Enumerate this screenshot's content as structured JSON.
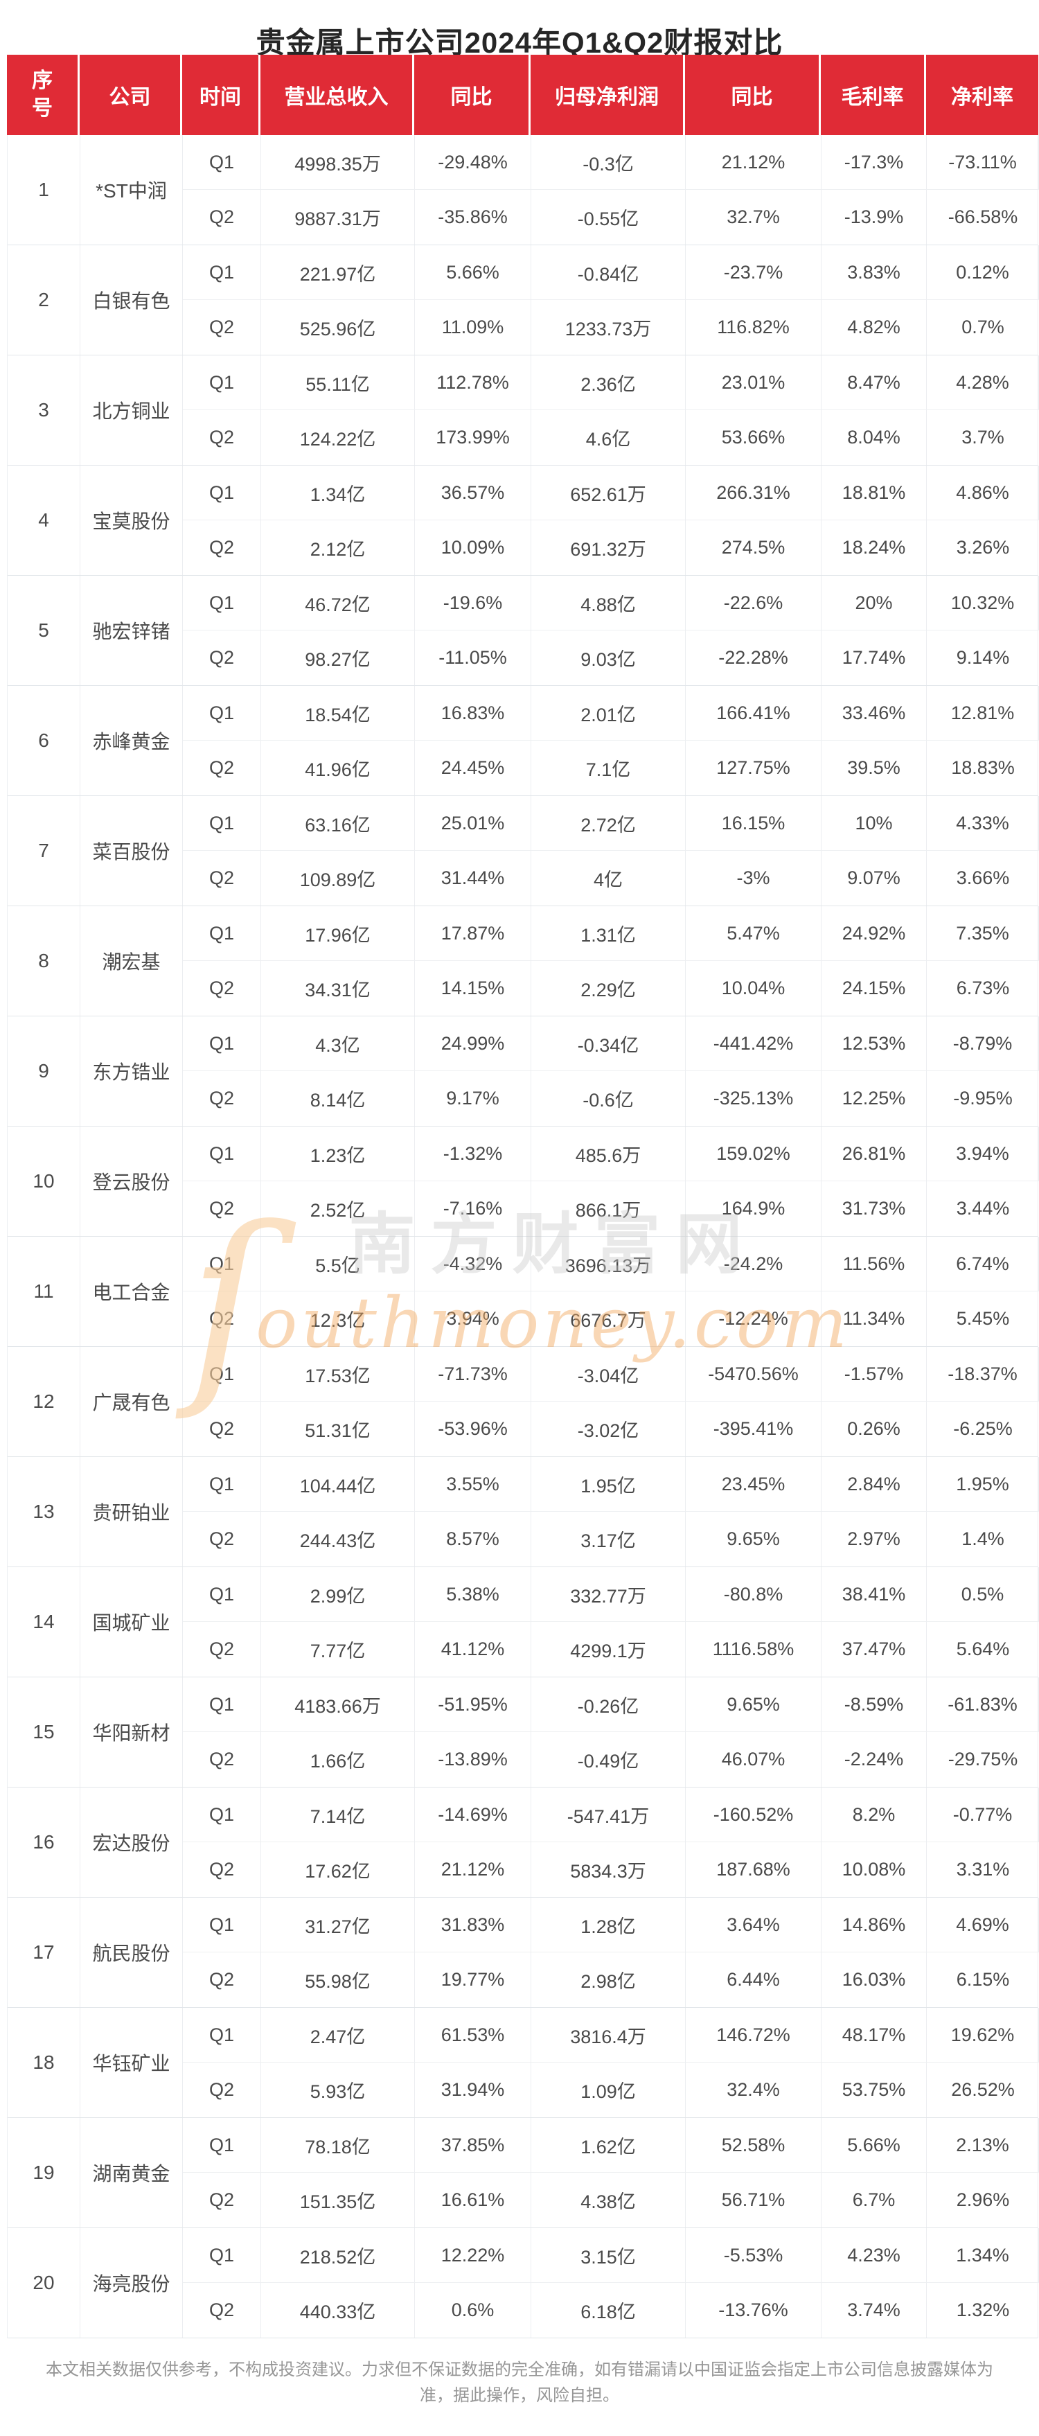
{
  "title": "贵金属上市公司2024年Q1&Q2财报对比",
  "colors": {
    "header_bg": "#e02b36",
    "header_text": "#ffffff",
    "body_text": "#4a4a4a",
    "title_text": "#262626",
    "footer_text": "#969696",
    "grid_line": "#eceef1",
    "watermark_orange": "#f2a65c",
    "watermark_gray": "#c8c8c8"
  },
  "table": {
    "headers": [
      "序号",
      "公司",
      "时间",
      "营业总收入",
      "同比",
      "归母净利润",
      "同比",
      "毛利率",
      "净利率"
    ],
    "rows": [
      {
        "no": "1",
        "company": "*ST中润",
        "q1": [
          "Q1",
          "4998.35万",
          "-29.48%",
          "-0.3亿",
          "21.12%",
          "-17.3%",
          "-73.11%"
        ],
        "q2": [
          "Q2",
          "9887.31万",
          "-35.86%",
          "-0.55亿",
          "32.7%",
          "-13.9%",
          "-66.58%"
        ]
      },
      {
        "no": "2",
        "company": "白银有色",
        "q1": [
          "Q1",
          "221.97亿",
          "5.66%",
          "-0.84亿",
          "-23.7%",
          "3.83%",
          "0.12%"
        ],
        "q2": [
          "Q2",
          "525.96亿",
          "11.09%",
          "1233.73万",
          "116.82%",
          "4.82%",
          "0.7%"
        ]
      },
      {
        "no": "3",
        "company": "北方铜业",
        "q1": [
          "Q1",
          "55.11亿",
          "112.78%",
          "2.36亿",
          "23.01%",
          "8.47%",
          "4.28%"
        ],
        "q2": [
          "Q2",
          "124.22亿",
          "173.99%",
          "4.6亿",
          "53.66%",
          "8.04%",
          "3.7%"
        ]
      },
      {
        "no": "4",
        "company": "宝莫股份",
        "q1": [
          "Q1",
          "1.34亿",
          "36.57%",
          "652.61万",
          "266.31%",
          "18.81%",
          "4.86%"
        ],
        "q2": [
          "Q2",
          "2.12亿",
          "10.09%",
          "691.32万",
          "274.5%",
          "18.24%",
          "3.26%"
        ]
      },
      {
        "no": "5",
        "company": "驰宏锌锗",
        "q1": [
          "Q1",
          "46.72亿",
          "-19.6%",
          "4.88亿",
          "-22.6%",
          "20%",
          "10.32%"
        ],
        "q2": [
          "Q2",
          "98.27亿",
          "-11.05%",
          "9.03亿",
          "-22.28%",
          "17.74%",
          "9.14%"
        ]
      },
      {
        "no": "6",
        "company": "赤峰黄金",
        "q1": [
          "Q1",
          "18.54亿",
          "16.83%",
          "2.01亿",
          "166.41%",
          "33.46%",
          "12.81%"
        ],
        "q2": [
          "Q2",
          "41.96亿",
          "24.45%",
          "7.1亿",
          "127.75%",
          "39.5%",
          "18.83%"
        ]
      },
      {
        "no": "7",
        "company": "菜百股份",
        "q1": [
          "Q1",
          "63.16亿",
          "25.01%",
          "2.72亿",
          "16.15%",
          "10%",
          "4.33%"
        ],
        "q2": [
          "Q2",
          "109.89亿",
          "31.44%",
          "4亿",
          "-3%",
          "9.07%",
          "3.66%"
        ]
      },
      {
        "no": "8",
        "company": "潮宏基",
        "q1": [
          "Q1",
          "17.96亿",
          "17.87%",
          "1.31亿",
          "5.47%",
          "24.92%",
          "7.35%"
        ],
        "q2": [
          "Q2",
          "34.31亿",
          "14.15%",
          "2.29亿",
          "10.04%",
          "24.15%",
          "6.73%"
        ]
      },
      {
        "no": "9",
        "company": "东方锆业",
        "q1": [
          "Q1",
          "4.3亿",
          "24.99%",
          "-0.34亿",
          "-441.42%",
          "12.53%",
          "-8.79%"
        ],
        "q2": [
          "Q2",
          "8.14亿",
          "9.17%",
          "-0.6亿",
          "-325.13%",
          "12.25%",
          "-9.95%"
        ]
      },
      {
        "no": "10",
        "company": "登云股份",
        "q1": [
          "Q1",
          "1.23亿",
          "-1.32%",
          "485.6万",
          "159.02%",
          "26.81%",
          "3.94%"
        ],
        "q2": [
          "Q2",
          "2.52亿",
          "-7.16%",
          "866.1万",
          "164.9%",
          "31.73%",
          "3.44%"
        ]
      },
      {
        "no": "11",
        "company": "电工合金",
        "q1": [
          "Q1",
          "5.5亿",
          "-4.32%",
          "3696.13万",
          "-24.2%",
          "11.56%",
          "6.74%"
        ],
        "q2": [
          "Q2",
          "12.3亿",
          "3.94%",
          "6676.7万",
          "-12.24%",
          "11.34%",
          "5.45%"
        ]
      },
      {
        "no": "12",
        "company": "广晟有色",
        "q1": [
          "Q1",
          "17.53亿",
          "-71.73%",
          "-3.04亿",
          "-5470.56%",
          "-1.57%",
          "-18.37%"
        ],
        "q2": [
          "Q2",
          "51.31亿",
          "-53.96%",
          "-3.02亿",
          "-395.41%",
          "0.26%",
          "-6.25%"
        ]
      },
      {
        "no": "13",
        "company": "贵研铂业",
        "q1": [
          "Q1",
          "104.44亿",
          "3.55%",
          "1.95亿",
          "23.45%",
          "2.84%",
          "1.95%"
        ],
        "q2": [
          "Q2",
          "244.43亿",
          "8.57%",
          "3.17亿",
          "9.65%",
          "2.97%",
          "1.4%"
        ]
      },
      {
        "no": "14",
        "company": "国城矿业",
        "q1": [
          "Q1",
          "2.99亿",
          "5.38%",
          "332.77万",
          "-80.8%",
          "38.41%",
          "0.5%"
        ],
        "q2": [
          "Q2",
          "7.77亿",
          "41.12%",
          "4299.1万",
          "1116.58%",
          "37.47%",
          "5.64%"
        ]
      },
      {
        "no": "15",
        "company": "华阳新材",
        "q1": [
          "Q1",
          "4183.66万",
          "-51.95%",
          "-0.26亿",
          "9.65%",
          "-8.59%",
          "-61.83%"
        ],
        "q2": [
          "Q2",
          "1.66亿",
          "-13.89%",
          "-0.49亿",
          "46.07%",
          "-2.24%",
          "-29.75%"
        ]
      },
      {
        "no": "16",
        "company": "宏达股份",
        "q1": [
          "Q1",
          "7.14亿",
          "-14.69%",
          "-547.41万",
          "-160.52%",
          "8.2%",
          "-0.77%"
        ],
        "q2": [
          "Q2",
          "17.62亿",
          "21.12%",
          "5834.3万",
          "187.68%",
          "10.08%",
          "3.31%"
        ]
      },
      {
        "no": "17",
        "company": "航民股份",
        "q1": [
          "Q1",
          "31.27亿",
          "31.83%",
          "1.28亿",
          "3.64%",
          "14.86%",
          "4.69%"
        ],
        "q2": [
          "Q2",
          "55.98亿",
          "19.77%",
          "2.98亿",
          "6.44%",
          "16.03%",
          "6.15%"
        ]
      },
      {
        "no": "18",
        "company": "华钰矿业",
        "q1": [
          "Q1",
          "2.47亿",
          "61.53%",
          "3816.4万",
          "146.72%",
          "48.17%",
          "19.62%"
        ],
        "q2": [
          "Q2",
          "5.93亿",
          "31.94%",
          "1.09亿",
          "32.4%",
          "53.75%",
          "26.52%"
        ]
      },
      {
        "no": "19",
        "company": "湖南黄金",
        "q1": [
          "Q1",
          "78.18亿",
          "37.85%",
          "1.62亿",
          "52.58%",
          "5.66%",
          "2.13%"
        ],
        "q2": [
          "Q2",
          "151.35亿",
          "16.61%",
          "4.38亿",
          "56.71%",
          "6.7%",
          "2.96%"
        ]
      },
      {
        "no": "20",
        "company": "海亮股份",
        "q1": [
          "Q1",
          "218.52亿",
          "12.22%",
          "3.15亿",
          "-5.53%",
          "4.23%",
          "1.34%"
        ],
        "q2": [
          "Q2",
          "440.33亿",
          "0.6%",
          "6.18亿",
          "-13.76%",
          "3.74%",
          "1.32%"
        ]
      }
    ]
  },
  "watermark": {
    "swoosh": "ſ",
    "cn": "南方财富网",
    "en": "outhmoney.com"
  },
  "footer": "本文相关数据仅供参考，不构成投资建议。力求但不保证数据的完全准确，如有错漏请以中国证监会指定上市公司信息披露媒体为准，据此操作，风险自担。"
}
